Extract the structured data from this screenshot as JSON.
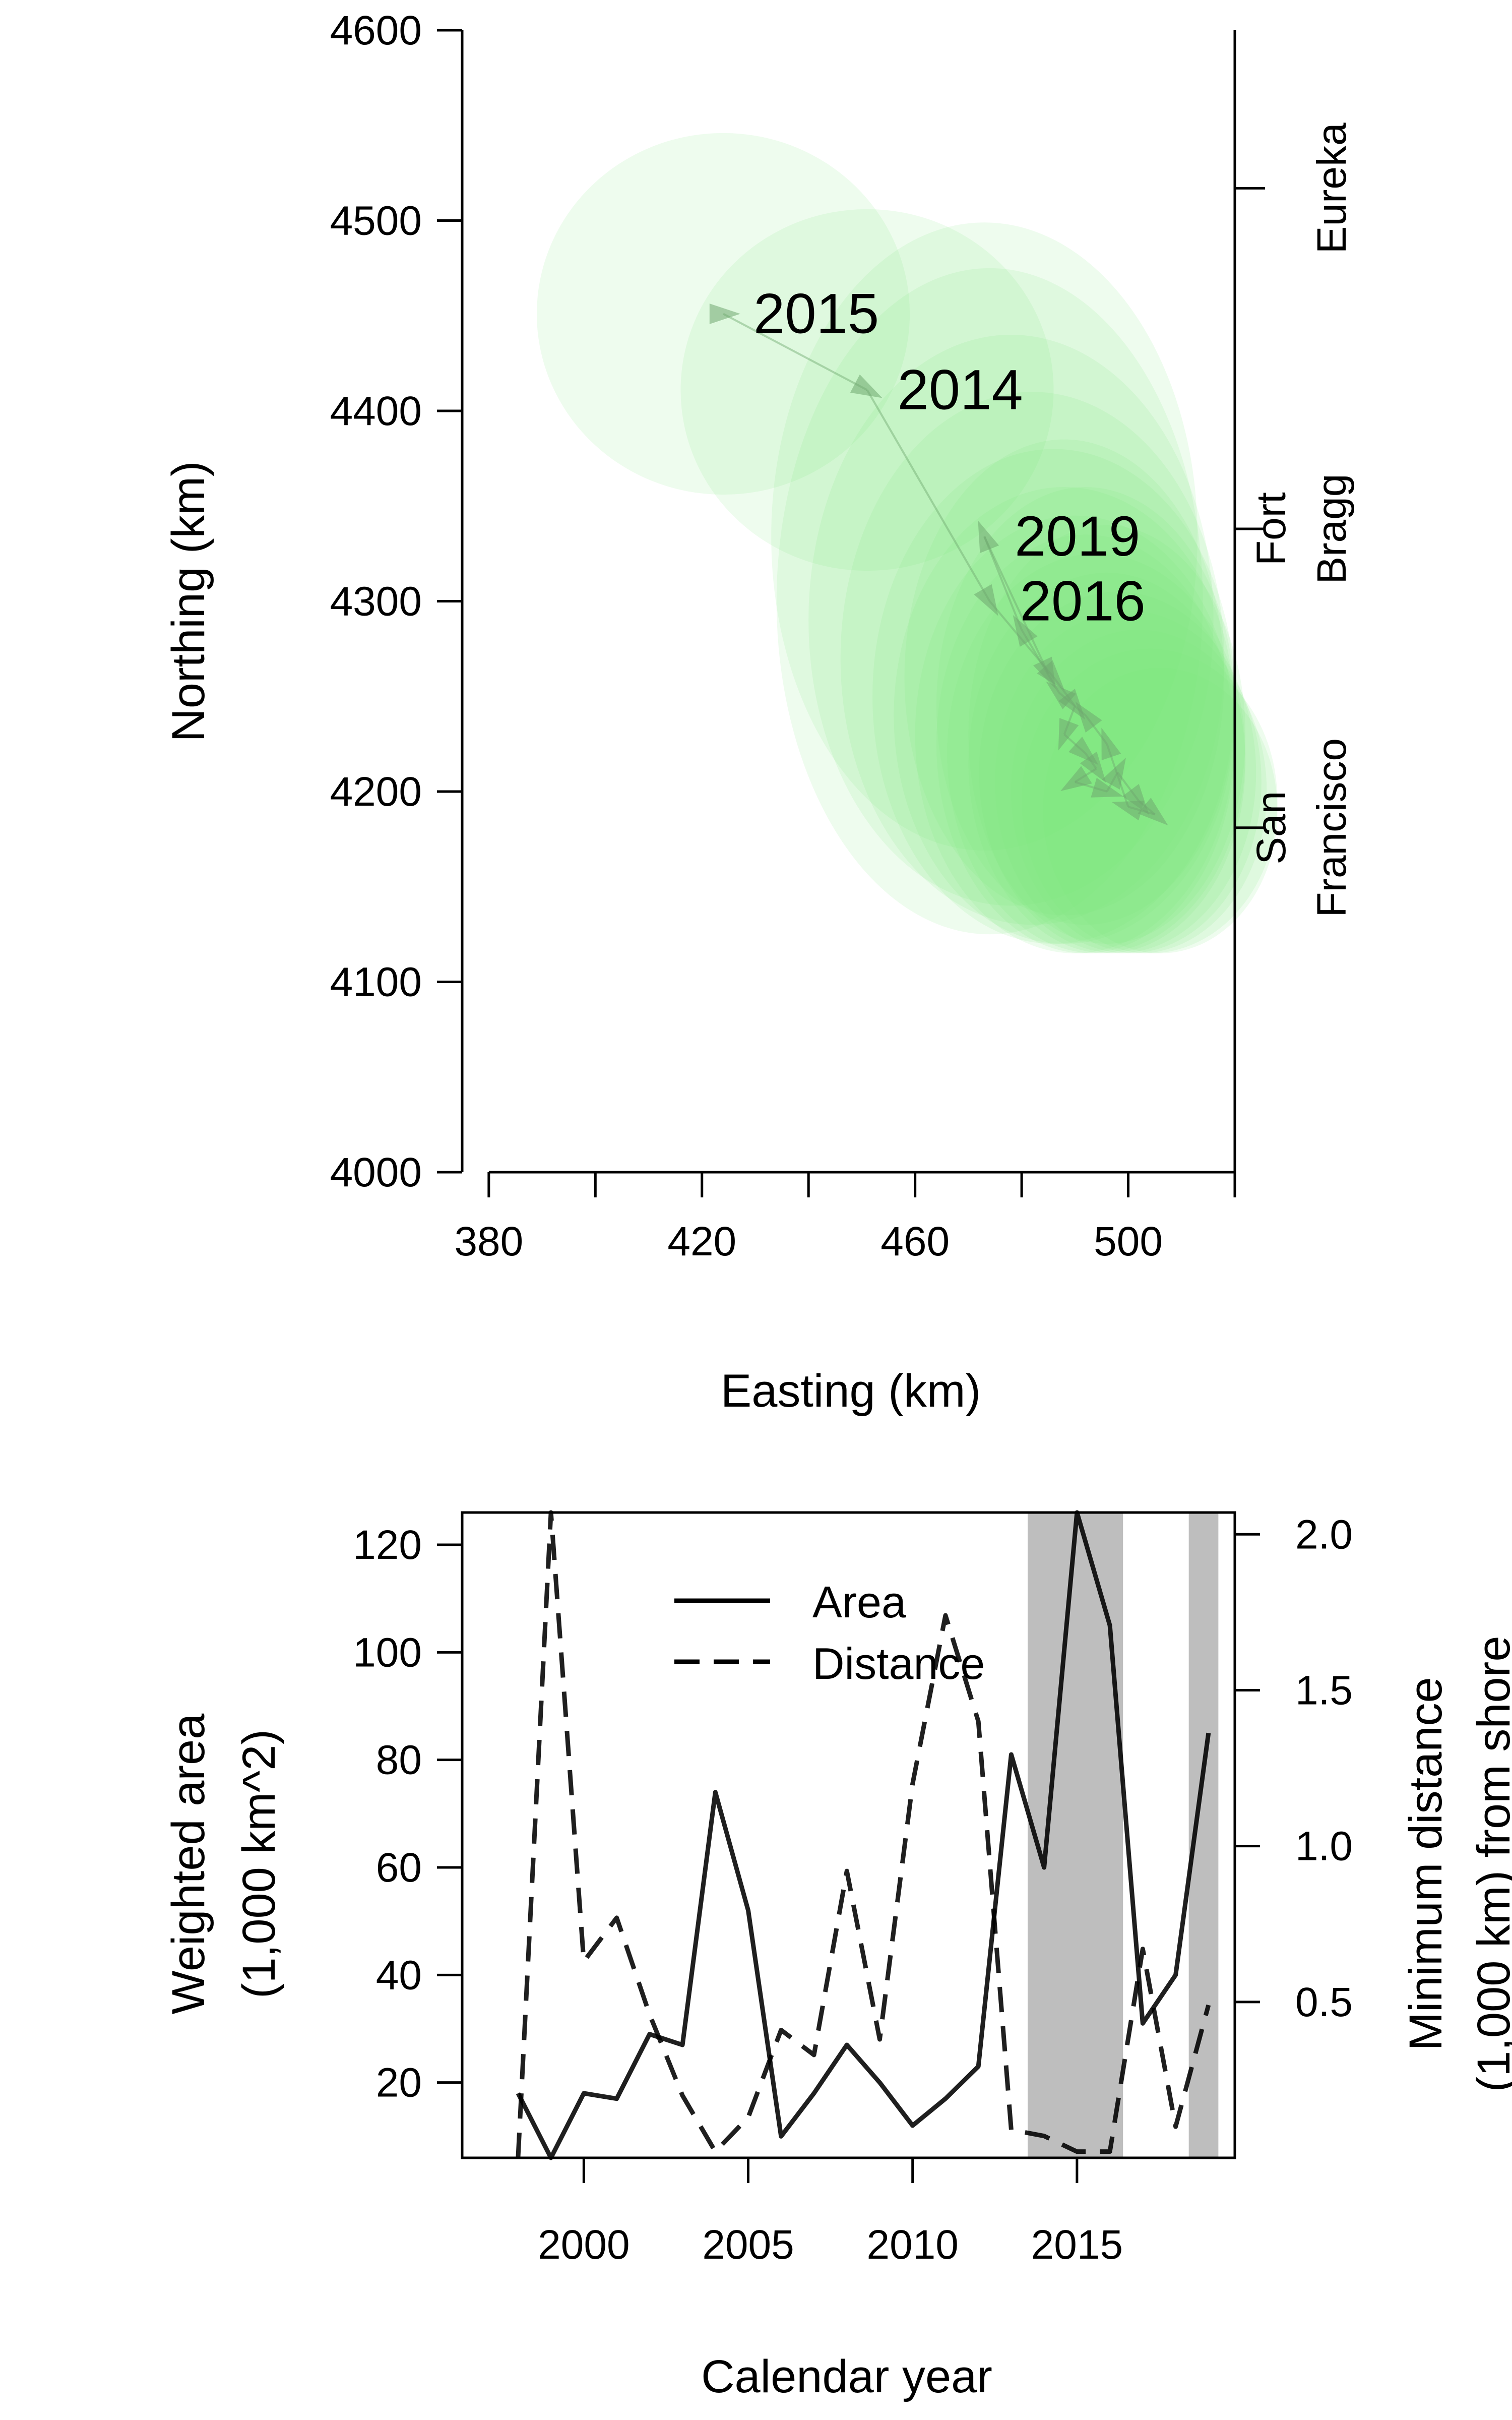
{
  "chart_data": [
    {
      "type": "scatter",
      "xlabel": "Easting (km)",
      "ylabel": "Northing (km)",
      "xlim": [
        375,
        520
      ],
      "ylim": [
        4000,
        4600
      ],
      "xticks": [
        380,
        400,
        420,
        440,
        460,
        480,
        500,
        520
      ],
      "xtick_labels": [
        "380",
        "420",
        "460",
        "500"
      ],
      "yticks": [
        4000,
        4100,
        4200,
        4300,
        4400,
        4500,
        4600
      ],
      "ytick_labels": [
        "4000",
        "4100",
        "4200",
        "4300",
        "4400",
        "4500",
        "4600"
      ],
      "right_axis_ticks": [
        4517,
        4338,
        4181
      ],
      "right_axis_labels": [
        {
          "lines": [
            "Eureka"
          ],
          "northing": 4517
        },
        {
          "lines": [
            "Fort",
            "Bragg"
          ],
          "northing": 4338
        },
        {
          "lines": [
            "San",
            "Francisco"
          ],
          "northing": 4181
        }
      ],
      "centroid_color": "#90ee90",
      "ellipse_color": "#7be87b",
      "arrow_color": "#6fa86f",
      "labeled_years": [
        {
          "year": "2015",
          "easting": 424,
          "northing": 4451
        },
        {
          "year": "2014",
          "easting": 451,
          "northing": 4411
        },
        {
          "year": "2019",
          "easting": 473,
          "northing": 4334
        },
        {
          "year": "2016",
          "easting": 474,
          "northing": 4300
        }
      ],
      "ellipses": [
        {
          "cx": 424,
          "cy": 4451,
          "rx": 35,
          "ry": 95
        },
        {
          "cx": 451,
          "cy": 4411,
          "rx": 35,
          "ry": 95
        },
        {
          "cx": 473,
          "cy": 4334,
          "rx": 40,
          "ry": 165
        },
        {
          "cx": 474,
          "cy": 4300,
          "rx": 40,
          "ry": 175
        },
        {
          "cx": 478,
          "cy": 4290,
          "rx": 38,
          "ry": 150
        },
        {
          "cx": 482,
          "cy": 4270,
          "rx": 36,
          "ry": 140
        },
        {
          "cx": 486,
          "cy": 4250,
          "rx": 34,
          "ry": 130
        },
        {
          "cx": 488,
          "cy": 4240,
          "rx": 32,
          "ry": 120
        },
        {
          "cx": 490,
          "cy": 4230,
          "rx": 30,
          "ry": 115
        },
        {
          "cx": 492,
          "cy": 4225,
          "rx": 28,
          "ry": 110
        },
        {
          "cx": 494,
          "cy": 4220,
          "rx": 28,
          "ry": 105
        },
        {
          "cx": 496,
          "cy": 4215,
          "rx": 26,
          "ry": 100
        },
        {
          "cx": 498,
          "cy": 4210,
          "rx": 26,
          "ry": 95
        },
        {
          "cx": 500,
          "cy": 4205,
          "rx": 25,
          "ry": 90
        },
        {
          "cx": 502,
          "cy": 4200,
          "rx": 24,
          "ry": 85
        },
        {
          "cx": 504,
          "cy": 4195,
          "rx": 24,
          "ry": 80
        },
        {
          "cx": 506,
          "cy": 4190,
          "rx": 22,
          "ry": 75
        },
        {
          "cx": 496,
          "cy": 4230,
          "rx": 26,
          "ry": 110
        },
        {
          "cx": 492,
          "cy": 4245,
          "rx": 28,
          "ry": 115
        },
        {
          "cx": 488,
          "cy": 4260,
          "rx": 30,
          "ry": 125
        }
      ],
      "track": [
        [
          424,
          4451
        ],
        [
          451,
          4411
        ],
        [
          474,
          4300
        ],
        [
          486,
          4260
        ],
        [
          490,
          4245
        ],
        [
          488,
          4230
        ],
        [
          492,
          4220
        ],
        [
          494,
          4212
        ],
        [
          490,
          4205
        ],
        [
          496,
          4200
        ],
        [
          498,
          4210
        ],
        [
          502,
          4195
        ],
        [
          505,
          4188
        ],
        [
          500,
          4192
        ],
        [
          496,
          4225
        ],
        [
          492,
          4240
        ],
        [
          487,
          4252
        ],
        [
          480,
          4285
        ],
        [
          473,
          4334
        ],
        [
          485,
          4262
        ]
      ]
    },
    {
      "type": "line",
      "xlabel": "Calendar year",
      "ylabel": [
        "Weighted area",
        "(1,000 km^2)"
      ],
      "y2label": [
        "Minimum distance",
        "(1,000 km) from shore"
      ],
      "xlim": [
        1996.3,
        2019.8
      ],
      "ylim": [
        6,
        126
      ],
      "y2lim": [
        0,
        2.07
      ],
      "xticks": [
        2000,
        2005,
        2010,
        2015
      ],
      "xtick_labels": [
        "2000",
        "2005",
        "2010",
        "2015"
      ],
      "yticks": [
        20,
        40,
        60,
        80,
        100,
        120
      ],
      "ytick_labels": [
        "20",
        "40",
        "60",
        "80",
        "100",
        "120"
      ],
      "y2ticks": [
        0.5,
        1.0,
        1.5,
        2.0
      ],
      "y2tick_labels": [
        "0.5",
        "1.0",
        "1.5",
        "2.0"
      ],
      "shaded_periods": [
        [
          2013.5,
          2016.4
        ],
        [
          2018.4,
          2019.3
        ]
      ],
      "shade_color": "#bebebe",
      "legend": {
        "position": "top-center",
        "entries": [
          "Area",
          "Distance"
        ]
      },
      "series": [
        {
          "name": "Area",
          "axis": "left",
          "style": "solid",
          "x": [
            1998,
            1999,
            2000,
            2001,
            2002,
            2003,
            2004,
            2005,
            2006,
            2007,
            2008,
            2009,
            2010,
            2011,
            2012,
            2013,
            2014,
            2015,
            2016,
            2017,
            2018,
            2019
          ],
          "y": [
            18,
            6,
            18,
            17,
            29,
            27,
            74,
            52,
            10,
            18,
            27,
            20,
            12,
            17,
            23,
            81,
            60,
            126,
            105,
            31,
            40,
            85
          ]
        },
        {
          "name": "Distance",
          "axis": "right",
          "style": "dashed",
          "x": [
            1998,
            1999,
            2000,
            2001,
            2002,
            2003,
            2004,
            2005,
            2006,
            2007,
            2008,
            2009,
            2010,
            2011,
            2012,
            2013,
            2014,
            2015,
            2016,
            2017,
            2018,
            2019
          ],
          "y": [
            0.0,
            2.07,
            0.63,
            0.77,
            0.46,
            0.2,
            0.02,
            0.13,
            0.41,
            0.33,
            0.92,
            0.38,
            1.2,
            1.74,
            1.4,
            0.09,
            0.07,
            0.02,
            0.02,
            0.67,
            0.1,
            0.49
          ]
        }
      ]
    }
  ]
}
